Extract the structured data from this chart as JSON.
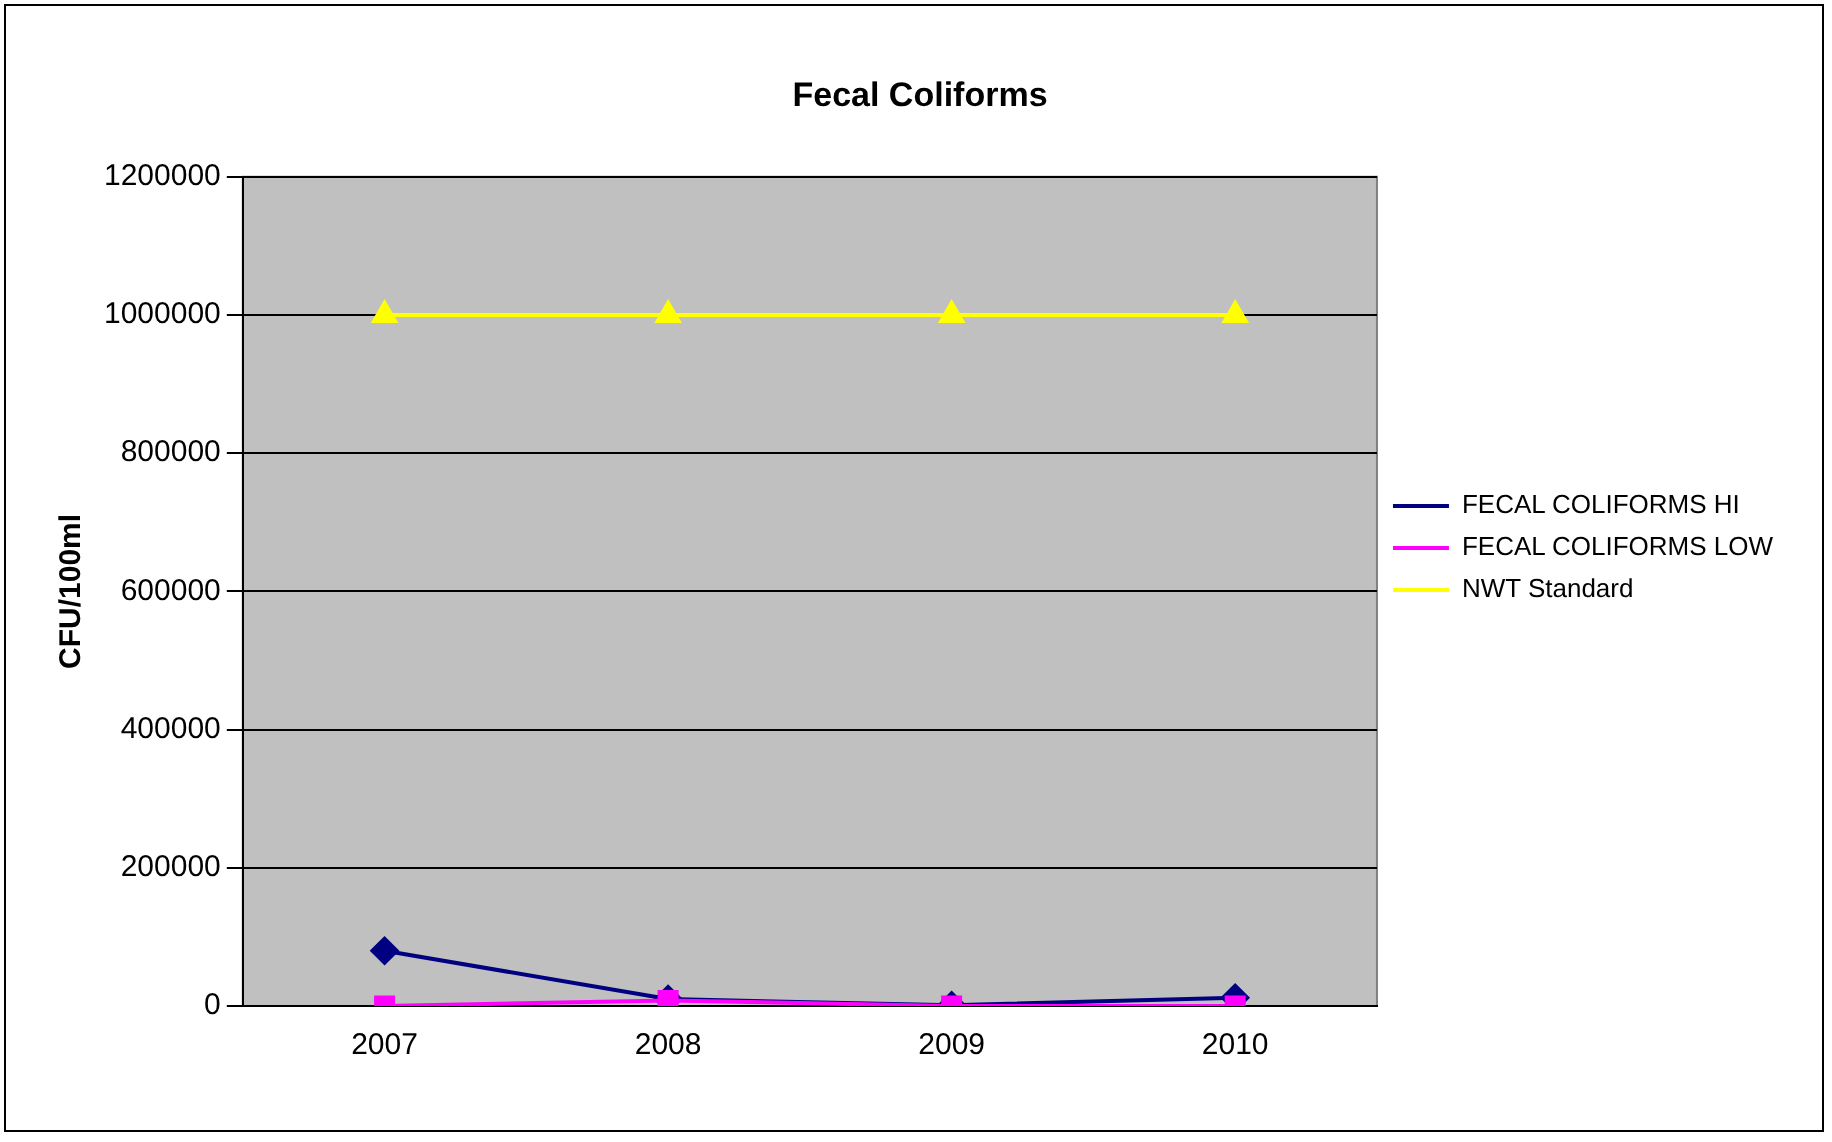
{
  "chart_data": {
    "type": "line",
    "title": "Fecal Coliforms",
    "ylabel": "CFU/100ml",
    "categories": [
      "2007",
      "2008",
      "2009",
      "2010"
    ],
    "series": [
      {
        "name": "FECAL COLIFORMS HI",
        "color": "#000080",
        "values": [
          80000,
          10000,
          1000,
          12000
        ],
        "marker": "diamond"
      },
      {
        "name": "FECAL COLIFORMS LOW",
        "color": "#ff00ff",
        "values": [
          0,
          8000,
          0,
          0
        ],
        "marker": "square"
      },
      {
        "name": "NWT Standard",
        "color": "#ffff00",
        "values": [
          1000000,
          1000000,
          1000000,
          1000000
        ],
        "marker": "triangle"
      }
    ],
    "ylim": [
      0,
      1200000
    ],
    "yticks": [
      0,
      200000,
      400000,
      600000,
      800000,
      1000000,
      1200000
    ],
    "grid": "y",
    "legend": "right"
  }
}
